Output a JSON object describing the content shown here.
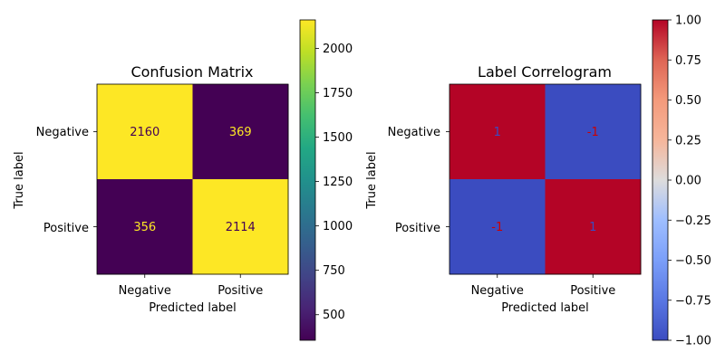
{
  "chart_data": [
    {
      "type": "heatmap",
      "title": "Confusion Matrix",
      "xlabel": "Predicted label",
      "ylabel": "True label",
      "x_categories": [
        "Negative",
        "Positive"
      ],
      "y_categories": [
        "Negative",
        "Positive"
      ],
      "values": [
        [
          2160,
          369
        ],
        [
          356,
          2114
        ]
      ],
      "value_labels": [
        [
          "2160",
          "369"
        ],
        [
          "356",
          "2114"
        ]
      ],
      "colormap": "viridis",
      "vmin": 356,
      "vmax": 2160,
      "colorbar": {
        "ticks": [
          500,
          750,
          1000,
          1250,
          1500,
          1750,
          2000
        ],
        "tick_labels": [
          "500",
          "750",
          "1000",
          "1250",
          "1500",
          "1750",
          "2000"
        ]
      },
      "colors": {
        "high_cell": "#fde725",
        "low_cell": "#440154",
        "text_on_dark": "#fde725",
        "text_on_light": "#440154"
      }
    },
    {
      "type": "heatmap",
      "title": "Label Correlogram",
      "xlabel": "Predicted label",
      "ylabel": "True label",
      "x_categories": [
        "Negative",
        "Positive"
      ],
      "y_categories": [
        "Negative",
        "Positive"
      ],
      "values": [
        [
          1,
          -1
        ],
        [
          -1,
          1
        ]
      ],
      "value_labels": [
        [
          "1",
          "-1"
        ],
        [
          "-1",
          "1"
        ]
      ],
      "colormap": "coolwarm",
      "vmin": -1,
      "vmax": 1,
      "colorbar": {
        "ticks": [
          -1.0,
          -0.75,
          -0.5,
          -0.25,
          0.0,
          0.25,
          0.5,
          0.75,
          1.0
        ],
        "tick_labels": [
          "−1.00",
          "−0.75",
          "−0.50",
          "−0.25",
          "0.00",
          "0.25",
          "0.50",
          "0.75",
          "1.00"
        ]
      },
      "colors": {
        "high_cell": "#b40426",
        "low_cell": "#3b4cc0",
        "text_on_high": "#3b4cc0",
        "text_on_low": "#cc0000"
      }
    }
  ]
}
